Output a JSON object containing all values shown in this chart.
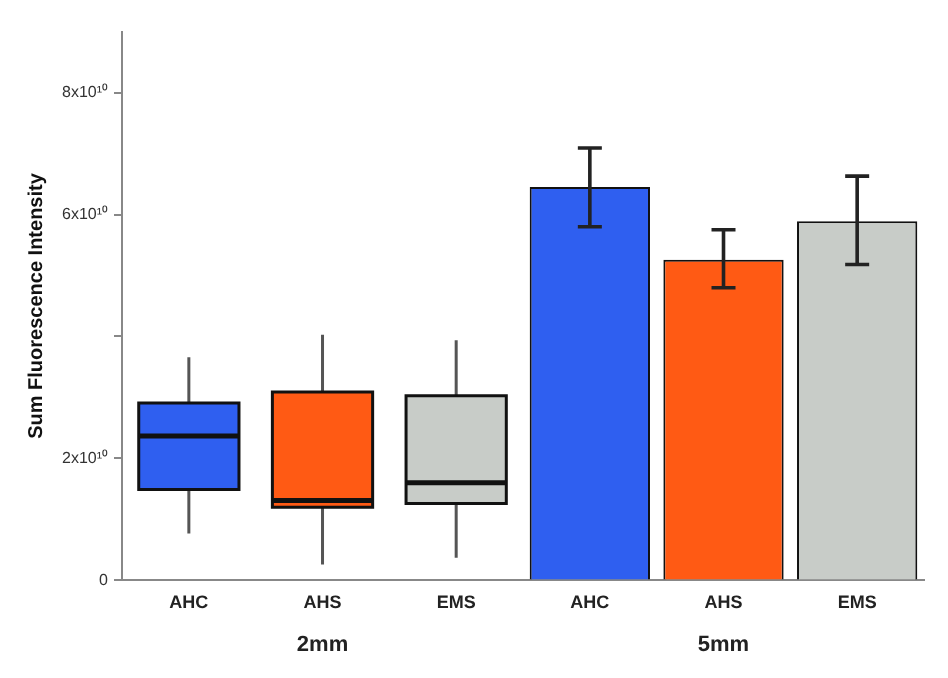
{
  "chart_data": {
    "type": "bar",
    "ylabel": "Sum Fluorescence Intensity",
    "categories": [
      "AHC",
      "AHS",
      "EMS",
      "AHC",
      "AHS",
      "EMS"
    ],
    "series": [
      {
        "type": "box",
        "colors": [
          "#2f5ff0",
          "#ff5a14",
          "#c8ccc8",
          null,
          null,
          null
        ],
        "boxes": [
          {
            "low": 7700000000.0,
            "q1": 14900000000.0,
            "median": 23700000000.0,
            "q3": 29100000000.0,
            "high": 36600000000.0
          },
          {
            "low": 2600000000.0,
            "q1": 12000000000.0,
            "median": 13100000000.0,
            "q3": 30900000000.0,
            "high": 40300000000.0
          },
          {
            "low": 3700000000.0,
            "q1": 12600000000.0,
            "median": 16000000000.0,
            "q3": 30300000000.0,
            "high": 39400000000.0
          },
          null,
          null,
          null
        ]
      },
      {
        "colors": [
          null,
          null,
          null,
          "#2f5ff0",
          "#ff5a14",
          "#c8ccc8"
        ],
        "values": [
          null,
          null,
          null,
          64500000000.0,
          52600000000.0,
          58900000000.0
        ],
        "errors": [
          null,
          null,
          null,
          [
            58000000000.0,
            70900000000.0
          ],
          [
            48000000000.0,
            57500000000.0
          ],
          [
            51800000000.0,
            66300000000.0
          ]
        ]
      }
    ],
    "ylim": [
      0,
      90000000000.0
    ],
    "yticks": [
      0,
      {
        "value": 20000000000.0,
        "label": "2x10¹⁰"
      },
      {
        "value": 40000000000.0,
        "label": null
      },
      {
        "value": 60000000000.0,
        "label": "6x10¹⁰"
      },
      {
        "value": 80000000000.0,
        "label": "8x10¹⁰"
      }
    ],
    "annotations": [
      "2mm",
      "5mm"
    ],
    "grid": false,
    "legend": false
  }
}
